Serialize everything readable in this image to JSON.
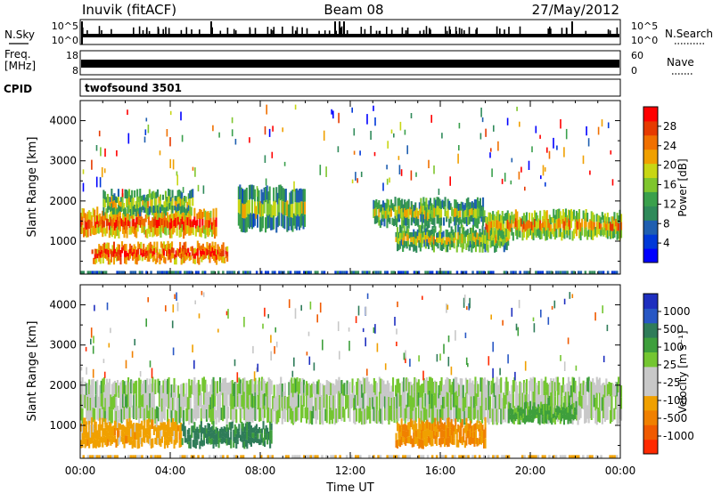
{
  "header": {
    "station": "Inuvik (fitACF)",
    "beam": "Beam 08",
    "date": "27/May/2012"
  },
  "strip_labels": {
    "nsky": "N.Sky",
    "nsky_ticks": [
      "10^5",
      "10^0"
    ],
    "nsearch": "N.Search",
    "freq_top": "Freq.",
    "freq_unit": "[MHz]",
    "freq_ticks": [
      "18",
      "8"
    ],
    "nave_ticks": [
      "60",
      "0"
    ],
    "nave": "Nave",
    "cpid": "CPID",
    "cpid_value": "twofsound 3501"
  },
  "x_axis": {
    "label": "Time UT",
    "ticks": [
      "00:00",
      "04:00",
      "08:00",
      "12:00",
      "16:00",
      "20:00",
      "00:00"
    ]
  },
  "power_colorbar": {
    "label": "Power [dB]",
    "ticks": [
      "28",
      "24",
      "20",
      "16",
      "12",
      "8",
      "4"
    ],
    "colors": [
      "#0000ff",
      "#0038d8",
      "#1f5fb0",
      "#2f8a5a",
      "#3aa04c",
      "#7fc62e",
      "#c8d614",
      "#f0a000",
      "#f07000",
      "#e63a00",
      "#ff0000"
    ]
  },
  "velocity_colorbar": {
    "label": "Velocity [m s⁻¹]",
    "ticks": [
      "1000",
      "500",
      "100",
      "25",
      "-25",
      "-100",
      "-500",
      "-1000"
    ],
    "colors": [
      "#1e2fbf",
      "#2857c4",
      "#2f7c59",
      "#3e9f3c",
      "#74c631",
      "#c8c8c8",
      "#c8c8c8",
      "#f0a000",
      "#f08000",
      "#f05a00",
      "#ff2a00"
    ]
  },
  "chart_data": [
    {
      "type": "heatmap",
      "title": "Power",
      "xlabel": "Time UT",
      "ylabel": "Slant Range [km]",
      "xlim": [
        0,
        24
      ],
      "ylim": [
        180,
        4500
      ],
      "yticks": [
        1000,
        2000,
        3000,
        4000
      ],
      "colorbar_range": [
        0,
        30
      ],
      "bands": [
        {
          "range_lo": 1150,
          "range_hi": 1750,
          "hours": [
            0,
            6
          ],
          "value": 22
        },
        {
          "range_lo": 500,
          "range_hi": 900,
          "hours": [
            0.5,
            6.5
          ],
          "value": 24
        },
        {
          "range_lo": 1700,
          "range_hi": 2200,
          "hours": [
            1,
            5
          ],
          "value": 14
        },
        {
          "range_lo": 1300,
          "range_hi": 2300,
          "hours": [
            7,
            10
          ],
          "value": 12
        },
        {
          "range_lo": 1400,
          "range_hi": 2000,
          "hours": [
            13,
            18
          ],
          "value": 13
        },
        {
          "range_lo": 800,
          "range_hi": 1300,
          "hours": [
            14,
            19
          ],
          "value": 14
        },
        {
          "range_lo": 1100,
          "range_hi": 1700,
          "hours": [
            18,
            24
          ],
          "value": 18
        }
      ]
    },
    {
      "type": "heatmap",
      "title": "Velocity",
      "xlabel": "Time UT",
      "ylabel": "Slant Range [km]",
      "xlim": [
        0,
        24
      ],
      "ylim": [
        180,
        4500
      ],
      "yticks": [
        1000,
        2000,
        3000,
        4000
      ],
      "bands": [
        {
          "range_lo": 1100,
          "range_hi": 2100,
          "hours": [
            0,
            24
          ],
          "value": 0
        },
        {
          "range_lo": 500,
          "range_hi": 1100,
          "hours": [
            0,
            4.5
          ],
          "value": -200
        },
        {
          "range_lo": 500,
          "range_hi": 1000,
          "hours": [
            4.5,
            8.5
          ],
          "value": 150
        },
        {
          "range_lo": 500,
          "range_hi": 1100,
          "hours": [
            14,
            18
          ],
          "value": -300
        },
        {
          "range_lo": 1100,
          "range_hi": 1500,
          "hours": [
            19,
            22
          ],
          "value": 50
        }
      ]
    }
  ]
}
